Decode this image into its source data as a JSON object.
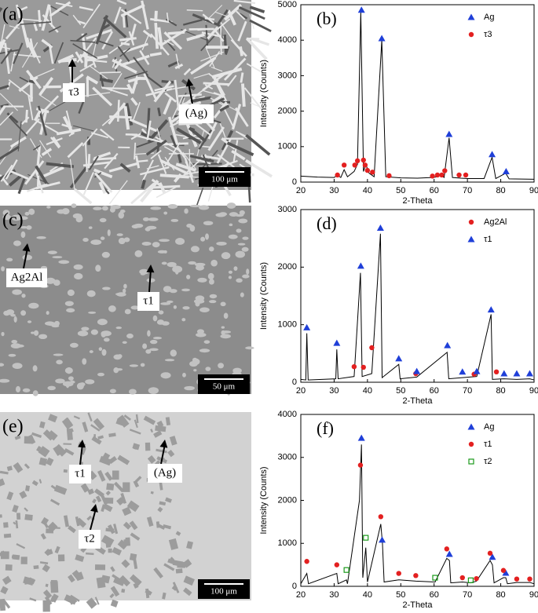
{
  "micrographs": [
    {
      "panel_label": "(a)",
      "labels": [
        "τ3",
        "(Ag)"
      ],
      "scale_bar": "100 μm"
    },
    {
      "panel_label": "(c)",
      "labels": [
        "Ag2Al",
        "τ1"
      ],
      "scale_bar": "50 μm"
    },
    {
      "panel_label": "(e)",
      "labels": [
        "τ1",
        "τ2",
        "(Ag)"
      ],
      "scale_bar": "100 μm"
    }
  ],
  "chart_data": [
    {
      "type": "line",
      "panel_label": "(b)",
      "xlabel": "2-Theta",
      "ylabel": "Intensity (Counts)",
      "xlim": [
        20,
        90
      ],
      "ylim": [
        0,
        5000
      ],
      "xticks": [
        20,
        30,
        40,
        50,
        60,
        70,
        80,
        90
      ],
      "yticks": [
        0,
        1000,
        2000,
        3000,
        4000,
        5000
      ],
      "legend": "upper right",
      "pattern": {
        "color": "#000000",
        "x": [
          20,
          25,
          30,
          31,
          32,
          33,
          34,
          36,
          37,
          38,
          38.8,
          39.5,
          40.5,
          42,
          44.3,
          45.5,
          50,
          55,
          59.5,
          61,
          62,
          63,
          64.5,
          65.5,
          68,
          70,
          75,
          77.4,
          78.5,
          81.5,
          82.5,
          90
        ],
        "values": [
          170,
          140,
          130,
          200,
          130,
          350,
          150,
          300,
          500,
          4800,
          300,
          500,
          250,
          150,
          4000,
          150,
          120,
          110,
          130,
          150,
          200,
          130,
          1250,
          130,
          110,
          100,
          100,
          700,
          100,
          250,
          90,
          80
        ]
      },
      "series": [
        {
          "name": "Ag",
          "color": "#1f3fd8",
          "marker": "triangle",
          "x": [
            38.2,
            44.3,
            64.5,
            77.4,
            81.6
          ],
          "values": [
            4850,
            4050,
            1350,
            780,
            300
          ]
        },
        {
          "name": "τ3",
          "color": "#e32020",
          "marker": "circle",
          "x": [
            31,
            33,
            36.2,
            37,
            38.8,
            39.3,
            40,
            41.5,
            46.5,
            59.5,
            61,
            62.3,
            63.2,
            67.5,
            69.5
          ],
          "values": [
            200,
            480,
            480,
            600,
            620,
            480,
            330,
            280,
            180,
            170,
            200,
            200,
            320,
            200,
            200
          ]
        }
      ]
    },
    {
      "type": "line",
      "panel_label": "(d)",
      "xlabel": "2-Theta",
      "ylabel": "Intensity (Counts)",
      "xlim": [
        20,
        90
      ],
      "ylim": [
        0,
        3000
      ],
      "xticks": [
        20,
        30,
        40,
        50,
        60,
        70,
        80,
        90
      ],
      "yticks": [
        0,
        1000,
        2000,
        3000
      ],
      "legend": "upper right",
      "pattern": {
        "color": "#000000",
        "x": [
          20,
          21.5,
          21.8,
          22.2,
          30.5,
          30.8,
          31.2,
          36,
          37.9,
          38.4,
          41.3,
          43.9,
          44.4,
          49.4,
          49.8,
          54.8,
          63.9,
          64.4,
          68.5,
          72.8,
          77.1,
          77.5,
          81,
          84.8,
          88.7,
          90
        ],
        "values": [
          50,
          40,
          850,
          40,
          60,
          570,
          60,
          100,
          1900,
          100,
          150,
          2580,
          80,
          310,
          60,
          90,
          520,
          60,
          80,
          100,
          1180,
          50,
          60,
          50,
          60,
          40
        ]
      },
      "series": [
        {
          "name": "Ag2Al",
          "color": "#e32020",
          "marker": "circle",
          "x": [
            36,
            38.8,
            41.3,
            54.5,
            72,
            78.7
          ],
          "values": [
            270,
            260,
            600,
            150,
            140,
            180
          ]
        },
        {
          "name": "τ1",
          "color": "#1f3fd8",
          "marker": "triangle",
          "x": [
            21.8,
            30.8,
            38,
            43.9,
            49.4,
            54.8,
            64,
            68.5,
            72.8,
            77.1,
            81,
            84.8,
            88.7
          ],
          "values": [
            950,
            680,
            2020,
            2680,
            410,
            190,
            640,
            180,
            190,
            1260,
            150,
            150,
            150
          ]
        }
      ]
    },
    {
      "type": "line",
      "panel_label": "(f)",
      "xlabel": "2-Theta",
      "ylabel": "Intensity (Counts)",
      "xlim": [
        20,
        90
      ],
      "ylim": [
        0,
        4000
      ],
      "xticks": [
        20,
        30,
        40,
        50,
        60,
        70,
        80,
        90
      ],
      "yticks": [
        0,
        1000,
        2000,
        3000,
        4000
      ],
      "legend": "upper right",
      "pattern": {
        "color": "#000000",
        "x": [
          20,
          21.8,
          22.3,
          30.8,
          31.2,
          33.7,
          34,
          37.6,
          38.2,
          38.6,
          39.5,
          40,
          44,
          44.5,
          45,
          49.4,
          54.5,
          60.3,
          63.8,
          64.6,
          65,
          68.5,
          71,
          72.7,
          76.8,
          77.5,
          78,
          80.8,
          81.5,
          82,
          84.8,
          88.7,
          90
        ],
        "values": [
          60,
          300,
          60,
          300,
          60,
          150,
          60,
          2000,
          3300,
          200,
          900,
          100,
          1450,
          1000,
          100,
          150,
          120,
          100,
          650,
          600,
          80,
          100,
          80,
          120,
          600,
          500,
          80,
          200,
          200,
          60,
          90,
          90,
          60
        ]
      },
      "series": [
        {
          "name": "Ag",
          "color": "#1f3fd8",
          "marker": "triangle",
          "x": [
            38.2,
            44.4,
            64.6,
            77.5,
            81.5
          ],
          "values": [
            3450,
            1080,
            750,
            680,
            310
          ]
        },
        {
          "name": "τ1",
          "color": "#e32020",
          "marker": "circle",
          "x": [
            21.8,
            30.8,
            37.9,
            44,
            49.4,
            54.5,
            63.8,
            68.5,
            72.7,
            76.8,
            80.8,
            84.8,
            88.7
          ],
          "values": [
            580,
            500,
            2820,
            1620,
            300,
            250,
            870,
            200,
            180,
            770,
            370,
            170,
            170
          ]
        },
        {
          "name": "τ2",
          "color": "#1a9a1a",
          "marker": "open-square",
          "x": [
            33.7,
            39.5,
            60.3,
            71
          ],
          "values": [
            380,
            1130,
            200,
            140
          ]
        }
      ]
    }
  ]
}
